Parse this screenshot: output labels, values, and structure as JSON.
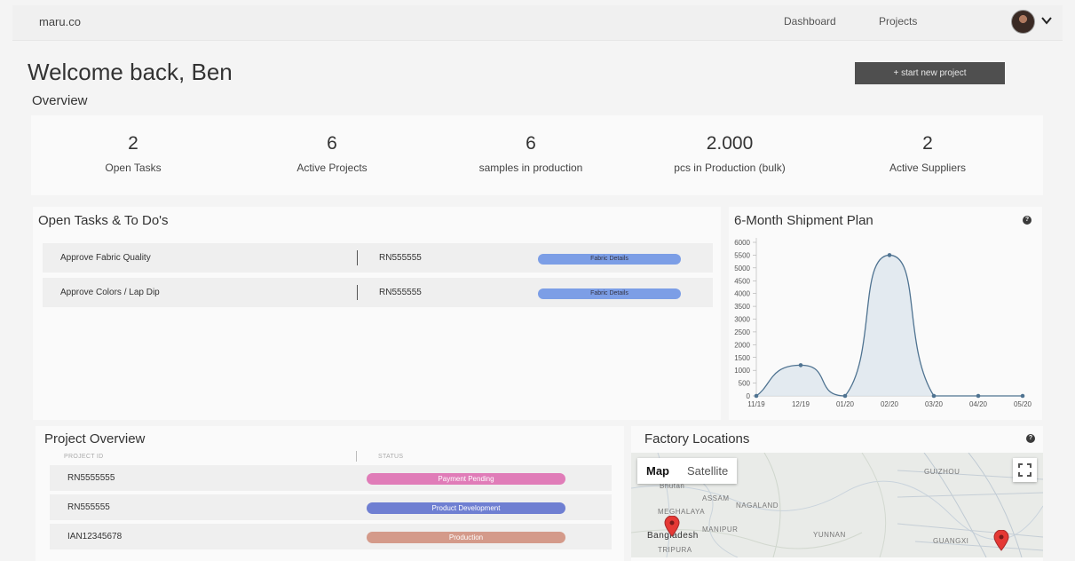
{
  "nav": {
    "brand": "maru.co",
    "links": [
      "Dashboard",
      "Projects"
    ]
  },
  "header": {
    "welcome": "Welcome back, Ben",
    "cta": "+ start new project",
    "overview_title": "Overview"
  },
  "stats": [
    {
      "value": "2",
      "label": "Open Tasks"
    },
    {
      "value": "6",
      "label": "Active Projects"
    },
    {
      "value": "6",
      "label": "samples in production"
    },
    {
      "value": "2.000",
      "label": "pcs in Production (bulk)"
    },
    {
      "value": "2",
      "label": "Active Suppliers"
    }
  ],
  "tasks": {
    "title": "Open Tasks & To Do's",
    "rows": [
      {
        "name": "Approve Fabric Quality",
        "id": "RN555555",
        "action": "Fabric Details"
      },
      {
        "name": "Approve Colors / Lap Dip",
        "id": "RN555555",
        "action": "Fabric Details"
      }
    ]
  },
  "chart_panel": {
    "title": "6-Month Shipment Plan",
    "help": "?"
  },
  "chart_data": {
    "type": "area",
    "title": "6-Month Shipment Plan",
    "categories": [
      "11/19",
      "12/19",
      "01/20",
      "02/20",
      "03/20",
      "04/20",
      "05/20"
    ],
    "values": [
      0,
      1200,
      0,
      5500,
      0,
      0,
      0
    ],
    "ylim": [
      0,
      6000
    ],
    "yticks": [
      "0",
      "500",
      "1000",
      "1500",
      "2000",
      "2500",
      "3000",
      "3500",
      "4000",
      "4500",
      "5000",
      "5500",
      "6000"
    ],
    "grid": false,
    "colors": {
      "line": "#4f7391",
      "fill": "#dde6ee"
    }
  },
  "projects": {
    "title": "Project Overview",
    "columns": [
      "PROJECT ID",
      "STATUS"
    ],
    "rows": [
      {
        "id": "RN5555555",
        "status": "Payment Pending",
        "color": "#e07cb8"
      },
      {
        "id": "RN555555",
        "status": "Product Development",
        "color": "#6f7fd2"
      },
      {
        "id": "IAN12345678",
        "status": "Production",
        "color": "#d49a8a"
      }
    ]
  },
  "map": {
    "title": "Factory Locations",
    "help": "?",
    "tabs": [
      "Map",
      "Satellite"
    ],
    "labels": [
      "Bhutan",
      "MEGHALAYA",
      "ASSAM",
      "NAGALAND",
      "MANIPUR",
      "TRIPURA",
      "YUNNAN",
      "GUIZHOU",
      "GUANGXI",
      "Bangladesh"
    ]
  }
}
